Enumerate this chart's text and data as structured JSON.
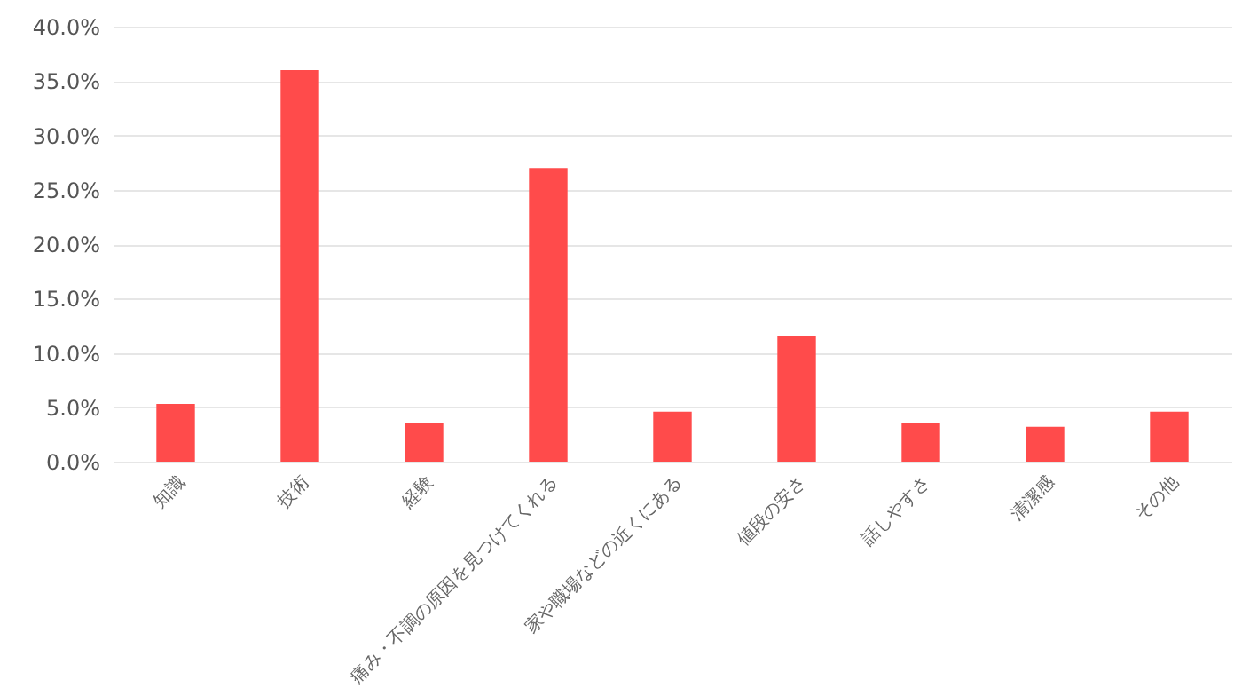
{
  "chart_data": {
    "type": "bar",
    "categories": [
      "知識",
      "技術",
      "経験",
      "痛み・不調の原因を見つけてくれる",
      "家や職場などの近くにある",
      "値段の安さ",
      "話しやすさ",
      "清潔感",
      "その他"
    ],
    "values": [
      5.3,
      36.0,
      3.6,
      27.0,
      4.6,
      11.6,
      3.6,
      3.2,
      4.6
    ],
    "color": "#ff4b4b",
    "ylim": [
      0,
      40
    ],
    "yticks": [
      {
        "value": 0,
        "label": "0.0%"
      },
      {
        "value": 5,
        "label": "5.0%"
      },
      {
        "value": 10,
        "label": "10.0%"
      },
      {
        "value": 15,
        "label": "15.0%"
      },
      {
        "value": 20,
        "label": "20.0%"
      },
      {
        "value": 25,
        "label": "25.0%"
      },
      {
        "value": 30,
        "label": "30.0%"
      },
      {
        "value": 35,
        "label": "35.0%"
      },
      {
        "value": 40,
        "label": "40.0%"
      }
    ],
    "grid": "y"
  }
}
